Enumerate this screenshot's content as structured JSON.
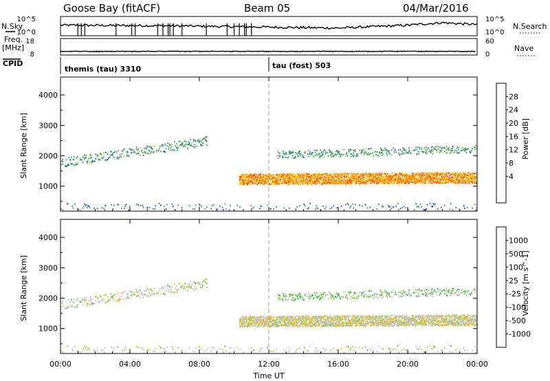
{
  "header": {
    "station": "Goose Bay (fitACF)",
    "beam": "Beam 05",
    "date": "04/Mar/2016"
  },
  "noise_panel": {
    "left_label": "N.Sky",
    "right_label": "N.Search",
    "left_ticks": [
      "10^5",
      "10^0"
    ],
    "right_ticks": [
      "10^5",
      "10^0"
    ]
  },
  "freq_panel": {
    "left_label": "Freq.",
    "left_unit": "[MHz]",
    "right_label": "Nave",
    "left_ticks": [
      "18",
      "8"
    ],
    "right_ticks": [
      "60",
      "0"
    ]
  },
  "cpid": {
    "label": "CPID",
    "modes": [
      "themis (tau) 3310",
      "tau (fost) 503"
    ]
  },
  "power_panel": {
    "ylabel": "Slant Range [km]",
    "colorbar": {
      "label": "Power [dB]",
      "ticks": [
        "28",
        "24",
        "20",
        "16",
        "12",
        "8",
        "4"
      ],
      "colors": [
        "#e00000",
        "#ff4a00",
        "#ff9900",
        "#ffd11a",
        "#8ed13b",
        "#4aa050",
        "#2e8a7a",
        "#2d5fa8",
        "#1a1aff"
      ]
    }
  },
  "velocity_panel": {
    "ylabel": "Slant Range [km]",
    "xlabel": "Time UT",
    "colorbar": {
      "label": "Velocity [m s^-1]",
      "ticks": [
        "1000",
        "500",
        "100",
        "25",
        "-25",
        "-100",
        "-500",
        "-1000"
      ],
      "colors": [
        "#2a4fb0",
        "#3c7db4",
        "#3fa347",
        "#8ed13b",
        "#bdbdbd",
        "#ffc000",
        "#ff7f00",
        "#ff3a00",
        "#e00000"
      ]
    }
  },
  "chart_data": {
    "type": "heatmap",
    "xlabel": "Time UT",
    "x_ticks": [
      "00:00",
      "04:00",
      "08:00",
      "12:00",
      "16:00",
      "20:00",
      "00:00"
    ],
    "x_range_hours": [
      0,
      24
    ],
    "ylabel": "Slant Range [km]",
    "y_range_km": [
      180,
      4590
    ],
    "y_ticks": [
      1000,
      2000,
      3000,
      4000
    ],
    "cpid_change_hour": 12.0,
    "cpid_marker_hours": [
      1.0,
      1.2,
      1.4,
      3.2,
      4.1,
      4.3,
      5.6,
      5.9,
      6.2,
      6.3,
      6.5,
      7.0,
      8.4,
      9.6,
      10.0,
      10.3,
      10.6,
      10.7,
      11.0
    ],
    "noise_sky_profile": [
      {
        "hour": 0,
        "level": 0.55
      },
      {
        "hour": 6,
        "level": 0.52
      },
      {
        "hour": 12,
        "level": 0.45
      },
      {
        "hour": 16,
        "level": 0.4
      },
      {
        "hour": 20,
        "level": 0.55
      },
      {
        "hour": 22,
        "level": 0.68
      },
      {
        "hour": 24,
        "level": 0.58
      }
    ],
    "frequency_mhz": 10.2,
    "nave_approx": 14,
    "echo_regions": [
      {
        "name": "morning-band",
        "t_start": 0.0,
        "t_end": 8.4,
        "range_start_km": 1750,
        "range_end_km": 2450,
        "width_km": 300,
        "power_db": 10,
        "velocity": 0
      },
      {
        "name": "evening-main-band",
        "t_start": 10.3,
        "t_end": 24.0,
        "range_start_km": 1200,
        "range_end_km": 1250,
        "width_km": 350,
        "power_db": 24,
        "velocity": -10
      },
      {
        "name": "evening-upper-band",
        "t_start": 12.5,
        "t_end": 24.0,
        "range_start_km": 2000,
        "range_end_km": 2200,
        "width_km": 250,
        "power_db": 10,
        "velocity": 20
      },
      {
        "name": "near-range-clutter",
        "t_start": 0.0,
        "t_end": 24.0,
        "range_start_km": 300,
        "range_end_km": 300,
        "width_km": 220,
        "power_db": 6,
        "velocity": 0
      }
    ]
  }
}
